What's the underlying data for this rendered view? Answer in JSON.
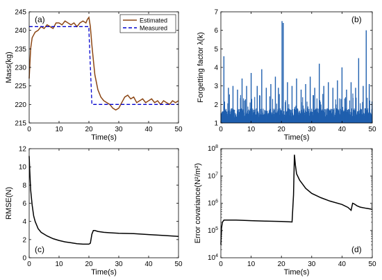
{
  "chart_data": [
    {
      "type": "line",
      "panel_label": "(a)",
      "xlabel": "Time(s)",
      "ylabel": "Mass(kg)",
      "xlim": [
        0,
        50
      ],
      "ylim": [
        215,
        245
      ],
      "xticks": [
        "0",
        "10",
        "20",
        "30",
        "40",
        "50"
      ],
      "yticks": [
        "215",
        "220",
        "225",
        "230",
        "235",
        "240",
        "245"
      ],
      "legend": "top-right",
      "series": [
        {
          "name": "Estimated",
          "color": "#8B4513",
          "x": [
            0,
            0.5,
            1,
            2,
            3,
            4,
            5,
            6,
            7,
            8,
            9,
            10,
            11,
            12,
            13,
            14,
            15,
            16,
            17,
            18,
            19,
            19.5,
            20,
            20.5,
            21,
            21.5,
            22,
            23,
            24,
            25,
            26,
            27,
            28,
            29,
            30,
            31,
            32,
            33,
            34,
            35,
            36,
            37,
            38,
            39,
            40,
            41,
            42,
            43,
            44,
            45,
            46,
            47,
            48,
            49,
            50
          ],
          "y": [
            227,
            235,
            238,
            239.5,
            240,
            241,
            240.5,
            241.5,
            241,
            240.5,
            242,
            242,
            241.5,
            242.5,
            242,
            241.5,
            242,
            241,
            242,
            242.5,
            242,
            243,
            243.5,
            241,
            236,
            232,
            228,
            224,
            222,
            221,
            220.5,
            220,
            219,
            218.5,
            219,
            220.5,
            222,
            222.5,
            221.5,
            222,
            220.5,
            221,
            221.5,
            220.5,
            221,
            221.5,
            220.5,
            221,
            220,
            221,
            220.5,
            220,
            221,
            220.5,
            221
          ]
        },
        {
          "name": "Measured",
          "color": "#0000CD",
          "x": [
            0,
            20,
            20,
            21,
            50
          ],
          "y": [
            241,
            241,
            240,
            220,
            220
          ]
        }
      ]
    },
    {
      "type": "bar",
      "panel_label": "(b)",
      "xlabel": "Time(s)",
      "ylabel": "Forgetting factor λ(k)",
      "xlim": [
        0,
        50
      ],
      "ylim": [
        1,
        7
      ],
      "xticks": [
        "0",
        "10",
        "20",
        "30",
        "40",
        "50"
      ],
      "yticks": [
        "1",
        "2",
        "3",
        "4",
        "5",
        "6",
        "7"
      ],
      "color": "#1F5FAE",
      "baseline": 1,
      "noise_floor": 1.8,
      "peaks": [
        {
          "x": 1.0,
          "y": 4.6
        },
        {
          "x": 2.5,
          "y": 2.9
        },
        {
          "x": 4.0,
          "y": 3.0
        },
        {
          "x": 5.5,
          "y": 2.8
        },
        {
          "x": 7.0,
          "y": 3.4
        },
        {
          "x": 8.5,
          "y": 3.0
        },
        {
          "x": 10.0,
          "y": 3.7
        },
        {
          "x": 12.0,
          "y": 3.0
        },
        {
          "x": 13.5,
          "y": 3.9
        },
        {
          "x": 15.0,
          "y": 2.9
        },
        {
          "x": 16.5,
          "y": 3.1
        },
        {
          "x": 18.0,
          "y": 3.5
        },
        {
          "x": 19.0,
          "y": 2.9
        },
        {
          "x": 20.2,
          "y": 6.5
        },
        {
          "x": 20.6,
          "y": 6.4
        },
        {
          "x": 22.0,
          "y": 3.2
        },
        {
          "x": 23.5,
          "y": 3.0
        },
        {
          "x": 25.0,
          "y": 3.4
        },
        {
          "x": 26.5,
          "y": 2.8
        },
        {
          "x": 28.0,
          "y": 3.1
        },
        {
          "x": 29.5,
          "y": 3.5
        },
        {
          "x": 31.0,
          "y": 2.9
        },
        {
          "x": 32.5,
          "y": 4.2
        },
        {
          "x": 34.0,
          "y": 3.0
        },
        {
          "x": 35.5,
          "y": 3.2
        },
        {
          "x": 37.0,
          "y": 2.9
        },
        {
          "x": 38.5,
          "y": 3.3
        },
        {
          "x": 40.0,
          "y": 4.0
        },
        {
          "x": 41.5,
          "y": 2.8
        },
        {
          "x": 43.0,
          "y": 3.2
        },
        {
          "x": 44.5,
          "y": 2.9
        },
        {
          "x": 45.5,
          "y": 4.5
        },
        {
          "x": 47.0,
          "y": 3.0
        },
        {
          "x": 48.0,
          "y": 6.0
        },
        {
          "x": 49.0,
          "y": 3.1
        }
      ]
    },
    {
      "type": "line",
      "panel_label": "(c)",
      "xlabel": "Time(s)",
      "ylabel": "RMSE(N)",
      "xlim": [
        0,
        50
      ],
      "ylim": [
        0,
        12
      ],
      "xticks": [
        "0",
        "10",
        "20",
        "30",
        "40",
        "50"
      ],
      "yticks": [
        "0",
        "2",
        "4",
        "6",
        "8",
        "10",
        "12"
      ],
      "series": [
        {
          "color": "#000000",
          "x": [
            0,
            0.2,
            0.5,
            1,
            1.5,
            2,
            3,
            4,
            5,
            6,
            8,
            10,
            12,
            14,
            16,
            18,
            20,
            20.5,
            21,
            21.5,
            22,
            23,
            25,
            27,
            30,
            35,
            40,
            45,
            50
          ],
          "y": [
            11.2,
            9.5,
            7.5,
            5.8,
            4.6,
            4.0,
            3.2,
            2.8,
            2.6,
            2.4,
            2.1,
            1.9,
            1.75,
            1.65,
            1.55,
            1.5,
            1.5,
            1.6,
            2.6,
            3.0,
            3.0,
            2.9,
            2.8,
            2.75,
            2.7,
            2.65,
            2.55,
            2.45,
            2.35
          ]
        }
      ]
    },
    {
      "type": "line",
      "panel_label": "(d)",
      "xlabel": "Time(s)",
      "ylabel": "Error covariance(N²/m²)",
      "xlim": [
        0,
        50
      ],
      "ylim": [
        10000,
        100000000
      ],
      "yscale": "log",
      "xticks": [
        "0",
        "10",
        "20",
        "30",
        "40",
        "50"
      ],
      "yticks": [
        "10^4",
        "10^5",
        "10^6",
        "10^7",
        "10^8"
      ],
      "series": [
        {
          "color": "#000000",
          "x": [
            0,
            0.2,
            0.5,
            1,
            5,
            10,
            15,
            20,
            22,
            23.5,
            24,
            24.3,
            24.6,
            25,
            26,
            27,
            28,
            30,
            33,
            36,
            40,
            42,
            43,
            43.5,
            44,
            45,
            46,
            48,
            50
          ],
          "y": [
            30000,
            120000,
            200000,
            240000,
            240000,
            230000,
            220000,
            215000,
            210000,
            205000,
            2000000,
            60000000,
            25000000,
            12000000,
            7000000,
            5000000,
            3500000,
            2300000,
            1600000,
            1200000,
            900000,
            700000,
            550000,
            1000000,
            950000,
            800000,
            720000,
            650000,
            600000
          ]
        }
      ]
    }
  ]
}
